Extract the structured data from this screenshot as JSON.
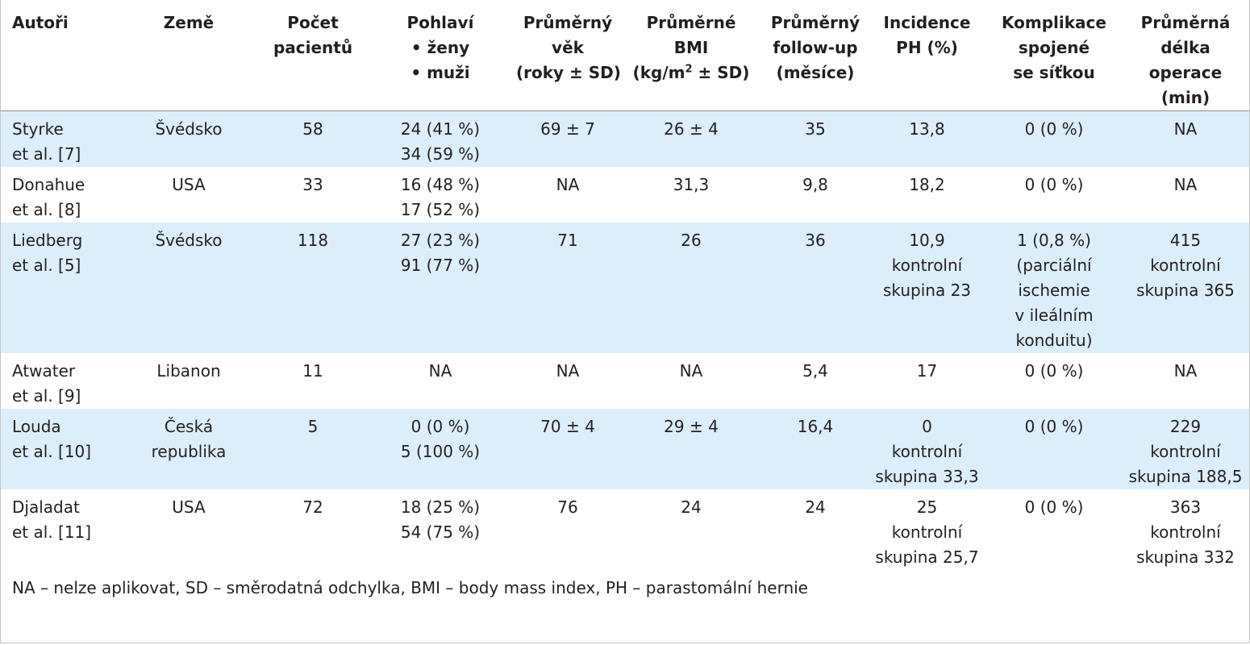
{
  "table": {
    "headers": {
      "authors": [
        "Autoři"
      ],
      "country": [
        "Země"
      ],
      "patients": [
        "Počet",
        "pacientů"
      ],
      "sex": [
        "Pohlaví",
        "ženy",
        "muži"
      ],
      "age": [
        "Průměrný",
        "věk",
        "(roky ± SD)"
      ],
      "bmi": [
        "Průměrné",
        "BMI",
        "(kg/m",
        "2",
        " ± SD)"
      ],
      "followup": [
        "Průměrný",
        "follow-up",
        "(měsíce)"
      ],
      "incidence": [
        "Incidence",
        "PH (%)"
      ],
      "complications": [
        "Komplikace",
        "spojené",
        "se síťkou"
      ],
      "duration": [
        "Průměrná",
        "délka",
        "operace",
        "(min)"
      ]
    },
    "rows": [
      {
        "authors": [
          "Styrke",
          "et al. [7]"
        ],
        "country": [
          "Švédsko"
        ],
        "patients": [
          "58"
        ],
        "sex": [
          "24 (41 %)",
          "34 (59 %)"
        ],
        "age": [
          "69 ± 7"
        ],
        "bmi": [
          "26 ± 4"
        ],
        "followup": [
          "35"
        ],
        "incidence": [
          "13,8"
        ],
        "complications": [
          "0 (0 %)"
        ],
        "duration": [
          "NA"
        ]
      },
      {
        "authors": [
          "Donahue",
          "et al. [8]"
        ],
        "country": [
          "USA"
        ],
        "patients": [
          "33"
        ],
        "sex": [
          "16 (48 %)",
          "17 (52 %)"
        ],
        "age": [
          "NA"
        ],
        "bmi": [
          "31,3"
        ],
        "followup": [
          "9,8"
        ],
        "incidence": [
          "18,2"
        ],
        "complications": [
          "0 (0 %)"
        ],
        "duration": [
          "NA"
        ]
      },
      {
        "authors": [
          "Liedberg",
          "et al. [5]"
        ],
        "country": [
          "Švédsko"
        ],
        "patients": [
          "118"
        ],
        "sex": [
          "27 (23 %)",
          "91 (77 %)"
        ],
        "age": [
          "71"
        ],
        "bmi": [
          "26"
        ],
        "followup": [
          "36"
        ],
        "incidence": [
          "10,9",
          "kontrolní",
          "skupina 23"
        ],
        "complications": [
          "1 (0,8 %)",
          "(parciální",
          "ischemie",
          "v ileálním",
          "konduitu)"
        ],
        "duration": [
          "415",
          "kontrolní",
          "skupina 365"
        ]
      },
      {
        "authors": [
          "Atwater",
          "et al. [9]"
        ],
        "country": [
          "Libanon"
        ],
        "patients": [
          "11"
        ],
        "sex": [
          "NA"
        ],
        "age": [
          "NA"
        ],
        "bmi": [
          "NA"
        ],
        "followup": [
          "5,4"
        ],
        "incidence": [
          "17"
        ],
        "complications": [
          "0 (0 %)"
        ],
        "duration": [
          "NA"
        ]
      },
      {
        "authors": [
          "Louda",
          "et al. [10]"
        ],
        "country": [
          "Česká",
          "republika"
        ],
        "patients": [
          "5"
        ],
        "sex": [
          "0 (0 %)",
          "5 (100 %)"
        ],
        "age": [
          "70 ± 4"
        ],
        "bmi": [
          "29 ± 4"
        ],
        "followup": [
          "16,4"
        ],
        "incidence": [
          "0",
          "kontrolní",
          "skupina 33,3"
        ],
        "complications": [
          "0 (0 %)"
        ],
        "duration": [
          "229",
          "kontrolní",
          "skupina 188,5"
        ]
      },
      {
        "authors": [
          "Djaladat",
          "et al. [11]"
        ],
        "country": [
          "USA"
        ],
        "patients": [
          "72"
        ],
        "sex": [
          "18 (25 %)",
          "54 (75 %)"
        ],
        "age": [
          "76"
        ],
        "bmi": [
          "24"
        ],
        "followup": [
          "24"
        ],
        "incidence": [
          "25",
          "kontrolní",
          "skupina 25,7"
        ],
        "complications": [
          "0 (0 %)"
        ],
        "duration": [
          "363",
          "kontrolní",
          "skupina 332"
        ]
      }
    ],
    "footnote": "NA – nelze aplikovat, SD – směrodatná odchylka, BMI – body mass index, PH – parastomální hernie"
  },
  "colors": {
    "shaded_row": "#ddeefb",
    "text": "#231f20",
    "rule": "#8e8e8e"
  }
}
